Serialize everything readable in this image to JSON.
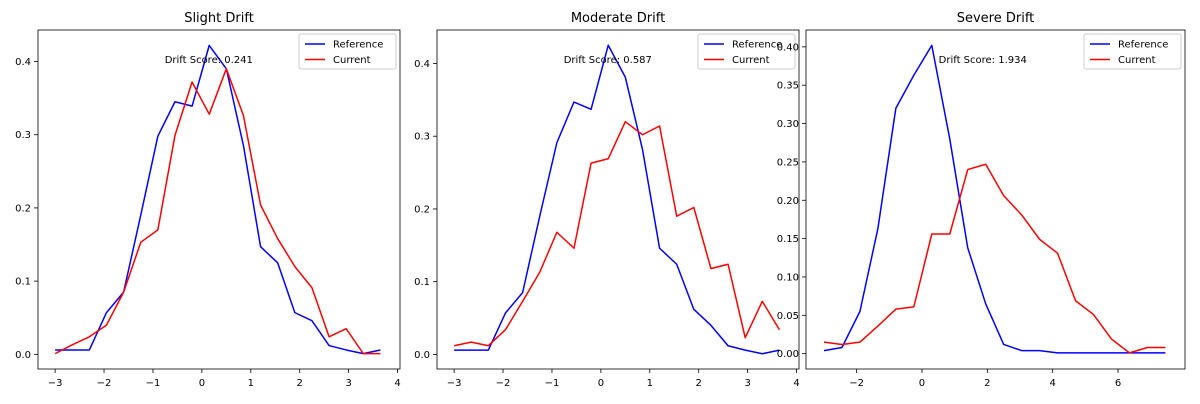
{
  "chart_data": [
    {
      "type": "line",
      "title": "Slight Drift",
      "annotation": "Drift Score: 0.241",
      "xlim": [
        -3.35,
        4.05
      ],
      "ylim": [
        -0.02,
        0.443
      ],
      "xticks": [
        -3,
        -2,
        -1,
        0,
        1,
        2,
        3,
        4
      ],
      "xtick_labels": [
        "−3",
        "−2",
        "−1",
        "0",
        "1",
        "2",
        "3",
        "4"
      ],
      "yticks": [
        0.0,
        0.1,
        0.2,
        0.3,
        0.4
      ],
      "ytick_labels": [
        "0.0",
        "0.1",
        "0.2",
        "0.3",
        "0.4"
      ],
      "legend": "top-right",
      "grid": false,
      "series": [
        {
          "name": "Reference",
          "color": "#0000ff",
          "x": [
            -3.0,
            -2.65,
            -2.3,
            -1.95,
            -1.6,
            -1.25,
            -0.9,
            -0.55,
            -0.2,
            0.15,
            0.5,
            0.85,
            1.2,
            1.55,
            1.9,
            2.25,
            2.6,
            2.95,
            3.3,
            3.65
          ],
          "y": [
            0.006,
            0.006,
            0.006,
            0.057,
            0.085,
            0.19,
            0.298,
            0.345,
            0.339,
            0.422,
            0.39,
            0.285,
            0.147,
            0.125,
            0.057,
            0.046,
            0.012,
            0.006,
            0.001,
            0.006
          ]
        },
        {
          "name": "Current",
          "color": "#ff0000",
          "x": [
            -3.0,
            -2.65,
            -2.3,
            -1.95,
            -1.6,
            -1.25,
            -0.9,
            -0.55,
            -0.2,
            0.15,
            0.5,
            0.85,
            1.2,
            1.55,
            1.9,
            2.25,
            2.6,
            2.95,
            3.3,
            3.65
          ],
          "y": [
            0.001,
            0.013,
            0.024,
            0.04,
            0.085,
            0.153,
            0.17,
            0.299,
            0.372,
            0.328,
            0.39,
            0.326,
            0.204,
            0.158,
            0.12,
            0.091,
            0.024,
            0.035,
            0.001,
            0.001
          ]
        }
      ]
    },
    {
      "type": "line",
      "title": "Moderate Drift",
      "annotation": "Drift Score: 0.587",
      "xlim": [
        -3.35,
        4.05
      ],
      "ylim": [
        -0.02,
        0.446
      ],
      "xticks": [
        -3,
        -2,
        -1,
        0,
        1,
        2,
        3,
        4
      ],
      "xtick_labels": [
        "−3",
        "−2",
        "−1",
        "0",
        "1",
        "2",
        "3",
        "4"
      ],
      "yticks": [
        0.0,
        0.1,
        0.2,
        0.3,
        0.4
      ],
      "ytick_labels": [
        "0.0",
        "0.1",
        "0.2",
        "0.3",
        "0.4"
      ],
      "legend": "top-right",
      "grid": false,
      "series": [
        {
          "name": "Reference",
          "color": "#0000ff",
          "x": [
            -3.0,
            -2.65,
            -2.3,
            -1.95,
            -1.6,
            -1.25,
            -0.9,
            -0.55,
            -0.2,
            0.15,
            0.5,
            0.85,
            1.2,
            1.55,
            1.9,
            2.25,
            2.6,
            2.95,
            3.3,
            3.65
          ],
          "y": [
            0.006,
            0.006,
            0.006,
            0.057,
            0.085,
            0.19,
            0.291,
            0.347,
            0.337,
            0.425,
            0.381,
            0.282,
            0.146,
            0.124,
            0.062,
            0.04,
            0.012,
            0.006,
            0.001,
            0.006
          ]
        },
        {
          "name": "Current",
          "color": "#ff0000",
          "x": [
            -3.0,
            -2.65,
            -2.3,
            -1.95,
            -1.6,
            -1.25,
            -0.9,
            -0.55,
            -0.2,
            0.15,
            0.5,
            0.85,
            1.2,
            1.55,
            1.9,
            2.25,
            2.6,
            2.95,
            3.3,
            3.65
          ],
          "y": [
            0.012,
            0.017,
            0.012,
            0.034,
            0.073,
            0.113,
            0.168,
            0.146,
            0.263,
            0.269,
            0.32,
            0.302,
            0.314,
            0.19,
            0.202,
            0.118,
            0.124,
            0.023,
            0.073,
            0.034
          ]
        }
      ]
    },
    {
      "type": "line",
      "title": "Severe Drift",
      "annotation": "Drift Score: 1.934",
      "xlim": [
        -3.55,
        8.05
      ],
      "ylim": [
        -0.02,
        0.422
      ],
      "xticks": [
        -2,
        0,
        2,
        4,
        6
      ],
      "xtick_labels": [
        "−2",
        "0",
        "2",
        "4",
        "6"
      ],
      "yticks": [
        0.0,
        0.05,
        0.1,
        0.15,
        0.2,
        0.25,
        0.3,
        0.35,
        0.4
      ],
      "ytick_labels": [
        "0.00",
        "0.05",
        "0.10",
        "0.15",
        "0.20",
        "0.25",
        "0.30",
        "0.35",
        "0.40"
      ],
      "legend": "top-right",
      "grid": false,
      "series": [
        {
          "name": "Reference",
          "color": "#0000ff",
          "x": [
            -3.0,
            -2.45,
            -1.9,
            -1.35,
            -0.8,
            -0.25,
            0.3,
            0.85,
            1.4,
            1.95,
            2.5,
            3.05,
            3.6,
            4.15,
            4.7,
            5.25,
            5.8,
            6.35,
            6.9,
            7.45
          ],
          "y": [
            0.004,
            0.008,
            0.055,
            0.163,
            0.32,
            0.363,
            0.402,
            0.28,
            0.138,
            0.065,
            0.012,
            0.004,
            0.004,
            0.001,
            0.001,
            0.001,
            0.001,
            0.001,
            0.001,
            0.001
          ]
        },
        {
          "name": "Current",
          "color": "#ff0000",
          "x": [
            -3.0,
            -2.45,
            -1.9,
            -1.35,
            -0.8,
            -0.25,
            0.3,
            0.85,
            1.4,
            1.95,
            2.5,
            3.05,
            3.6,
            4.15,
            4.7,
            5.25,
            5.8,
            6.35,
            6.9,
            7.45
          ],
          "y": [
            0.015,
            0.012,
            0.015,
            0.036,
            0.058,
            0.061,
            0.156,
            0.156,
            0.24,
            0.247,
            0.206,
            0.181,
            0.149,
            0.131,
            0.069,
            0.051,
            0.019,
            0.001,
            0.008,
            0.008
          ]
        }
      ]
    }
  ]
}
